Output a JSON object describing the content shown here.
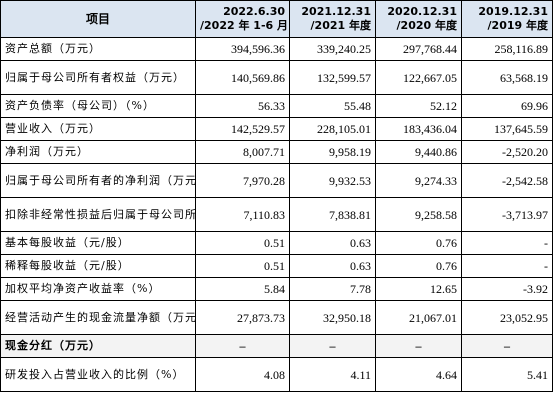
{
  "header": {
    "label": "项目",
    "periods": [
      {
        "line1": "2022.6.30",
        "line2": "/2022 年 1-6 月"
      },
      {
        "line1": "2021.12.31",
        "line2": "/2021 年度"
      },
      {
        "line1": "2020.12.31",
        "line2": "/2020 年度"
      },
      {
        "line1": "2019.12.31",
        "line2": "/2019 年度"
      }
    ]
  },
  "rows": [
    {
      "label": "资产总额（万元）",
      "values": [
        "394,596.36",
        "339,240.25",
        "297,768.44",
        "258,116.89"
      ]
    },
    {
      "label": "归属于母公司所有者权益（万元）",
      "values": [
        "140,569.86",
        "132,599.57",
        "122,667.05",
        "63,568.19"
      ]
    },
    {
      "label": "资产负债率（母公司）（%）",
      "values": [
        "56.33",
        "55.48",
        "52.12",
        "69.96"
      ]
    },
    {
      "label": "营业收入（万元）",
      "values": [
        "142,529.57",
        "228,105.01",
        "183,436.04",
        "137,645.59"
      ]
    },
    {
      "label": "净利润（万元）",
      "values": [
        "8,007.71",
        "9,958.19",
        "9,440.86",
        "-2,520.20"
      ]
    },
    {
      "label": "归属于母公司所有者的净利润（万元）",
      "values": [
        "7,970.28",
        "9,932.53",
        "9,274.33",
        "-2,542.58"
      ]
    },
    {
      "label": "扣除非经常性损益后归属于母公司所有者的净利润（万元）",
      "values": [
        "7,110.83",
        "7,838.81",
        "9,258.58",
        "-3,713.97"
      ]
    },
    {
      "label": "基本每股收益（元/股）",
      "values": [
        "0.51",
        "0.63",
        "0.76",
        "-"
      ]
    },
    {
      "label": "稀释每股收益（元/股）",
      "values": [
        "0.51",
        "0.63",
        "0.76",
        "-"
      ]
    },
    {
      "label": "加权平均净资产收益率（%）",
      "values": [
        "5.84",
        "7.78",
        "12.65",
        "-3.92"
      ]
    },
    {
      "label": "经营活动产生的现金流量净额（万元）",
      "values": [
        "27,873.73",
        "32,950.18",
        "21,067.01",
        "23,052.95"
      ]
    },
    {
      "label": "现金分红（万元）",
      "values": [
        "–",
        "–",
        "–",
        "–"
      ]
    },
    {
      "label": "研发投入占营业收入的比例（%）",
      "values": [
        "4.08",
        "4.11",
        "4.64",
        "5.41"
      ]
    }
  ]
}
